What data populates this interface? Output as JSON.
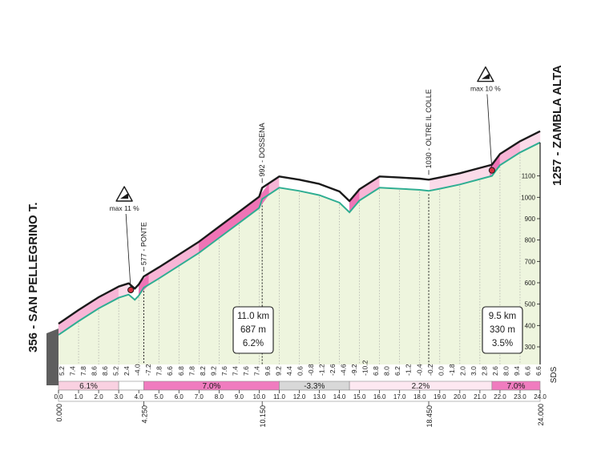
{
  "chart_data": {
    "type": "area",
    "title": "",
    "start": {
      "label": "356 - SAN PELLEGRINO T.",
      "km": "0.000"
    },
    "finish": {
      "label": "1257 - ZAMBLA ALTA",
      "km": "24.000"
    },
    "x": [
      0,
      1,
      2,
      3,
      3.5,
      3.8,
      4,
      4.25,
      5,
      6,
      7,
      8,
      9,
      10,
      10.15,
      11,
      12,
      13,
      14,
      14.5,
      15,
      16,
      17,
      18,
      18.45,
      19,
      20,
      21,
      21.6,
      22,
      23,
      24
    ],
    "elevation": [
      356,
      420,
      480,
      530,
      545,
      520,
      540,
      577,
      620,
      680,
      740,
      810,
      880,
      950,
      992,
      1045,
      1030,
      1010,
      975,
      930,
      985,
      1045,
      1040,
      1035,
      1030,
      1040,
      1060,
      1085,
      1100,
      1150,
      1210,
      1257
    ],
    "xlim": [
      0,
      24
    ],
    "ylim": [
      250,
      1300
    ],
    "yticks": [
      "300",
      "400",
      "500",
      "600",
      "700",
      "800",
      "900",
      "1000",
      "1100"
    ],
    "km_ticks": [
      "0.0",
      "1.0",
      "2.0",
      "3.0",
      "4.0",
      "5.0",
      "6.0",
      "7.0",
      "8.0",
      "9.0",
      "10.0",
      "11.0",
      "12.0",
      "13.0",
      "14.0",
      "15.0",
      "16.0",
      "17.0",
      "18.0",
      "19.0",
      "20.0",
      "21.0",
      "22.0",
      "23.0",
      "24.0"
    ],
    "km_labels_low": [
      {
        "x": 4.25,
        "label": "4.250"
      },
      {
        "x": 10.15,
        "label": "10.150"
      },
      {
        "x": 18.45,
        "label": "18.450"
      }
    ],
    "segment_gradients": [
      "5.2",
      "7.4",
      "7.8",
      "8.6",
      "8.6",
      "5.2",
      "2.4",
      "-4.0",
      "-7.2",
      "7.8",
      "6.6",
      "6.8",
      "7.8",
      "8.2",
      "9.2",
      "7.6",
      "7.4",
      "7.6",
      "7.4",
      "9.6",
      "9.2",
      "4.4",
      "0.6",
      "-0.8",
      "-1.2",
      "-2.6",
      "-4.6",
      "-9.2",
      "-10.2",
      "6.8",
      "8.0",
      "6.2",
      "-1.2",
      "-0.4",
      "-0.2",
      "0.0",
      "-1.8",
      "2.0",
      "3.0",
      "2.8",
      "2.6",
      "8.0",
      "9.4",
      "6.6",
      "6.6"
    ],
    "average_bands": [
      {
        "from": 0,
        "to": 3,
        "label": "6.1%",
        "color": "#f9d1e1"
      },
      {
        "from": 3,
        "to": 4.25,
        "label": "",
        "color": "#ffffff"
      },
      {
        "from": 4.25,
        "to": 11,
        "label": "7.0%",
        "color": "#f07cbf"
      },
      {
        "from": 11,
        "to": 14.5,
        "label": "-3.3%",
        "color": "#d8d8d8"
      },
      {
        "from": 14.5,
        "to": 21.6,
        "label": "2.2%",
        "color": "#fde8f1"
      },
      {
        "from": 21.6,
        "to": 24,
        "label": "7.0%",
        "color": "#f07cbf"
      }
    ],
    "points": [
      {
        "x": 4.25,
        "elev": 577,
        "label": "577 - PONTE"
      },
      {
        "x": 10.15,
        "elev": 992,
        "label": "992 - DOSSENA"
      },
      {
        "x": 18.45,
        "elev": 1030,
        "label": "1030 - OLTRE IL COLLE"
      }
    ],
    "max_markers": [
      {
        "x": 3.6,
        "elev": 540,
        "label": "max 11 %"
      },
      {
        "x": 21.6,
        "elev": 1100,
        "label": "max 10 %"
      }
    ],
    "summary_boxes": [
      {
        "lines": [
          "11.0 km",
          "687 m",
          "6.2%"
        ]
      },
      {
        "lines": [
          "9.5 km",
          "330 m",
          "3.5%"
        ]
      }
    ],
    "watermark": "SDS",
    "colors": {
      "fill": "#eef5de",
      "profile_top": "#1a1a1a",
      "ridge": "#2fae92",
      "steep": "#ef74b6",
      "moderate": "#f7b5d6",
      "gentle": "#fadbe9",
      "descent": "#ffffff",
      "base": "#5e5e5e",
      "marker": "#d32f3f"
    }
  }
}
